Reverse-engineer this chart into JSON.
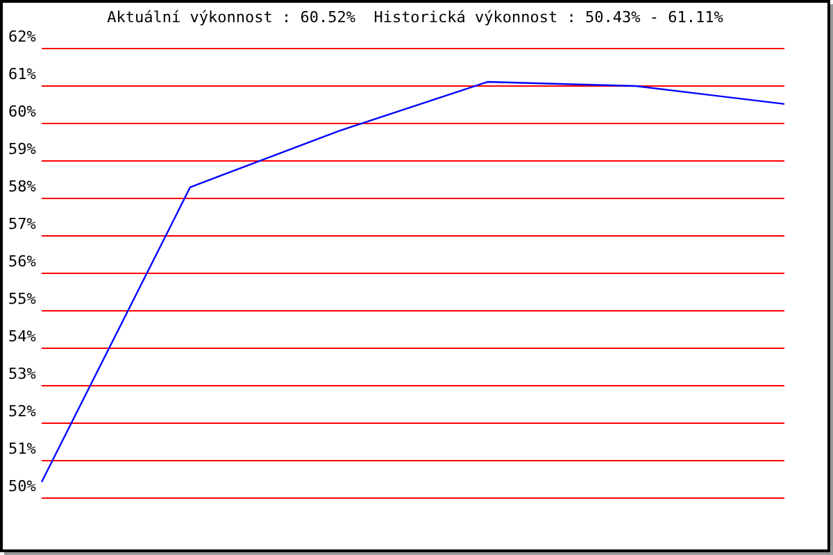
{
  "chart_data": {
    "type": "line",
    "title": "Aktuální výkonnost : 60.52%  Historická výkonnost : 50.43% - 61.11%",
    "categories": [
      null,
      null,
      null,
      null,
      null,
      null
    ],
    "series": [
      {
        "color": "#0000ff",
        "values": [
          50.43,
          58.3,
          59.8,
          61.11,
          61.0,
          60.52
        ]
      }
    ],
    "ylim": [
      50,
      62
    ],
    "yticks": [
      {
        "value": 50,
        "label": "50%"
      },
      {
        "value": 51,
        "label": "51%"
      },
      {
        "value": 52,
        "label": "52%"
      },
      {
        "value": 53,
        "label": "53%"
      },
      {
        "value": 54,
        "label": "54%"
      },
      {
        "value": 55,
        "label": "55%"
      },
      {
        "value": 56,
        "label": "56%"
      },
      {
        "value": 57,
        "label": "57%"
      },
      {
        "value": 58,
        "label": "58%"
      },
      {
        "value": 59,
        "label": "59%"
      },
      {
        "value": 60,
        "label": "60%"
      },
      {
        "value": 61,
        "label": "61%"
      },
      {
        "value": 62,
        "label": "62%"
      }
    ],
    "grid": "y",
    "tick_labels": "y",
    "marker": "none",
    "line_style": "solid"
  }
}
